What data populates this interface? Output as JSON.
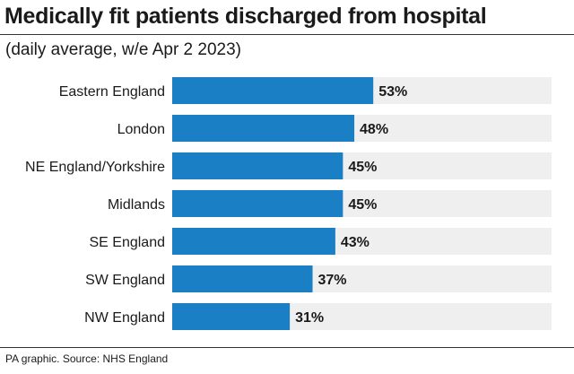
{
  "chart_data": {
    "type": "bar",
    "orientation": "horizontal",
    "title": "Medically fit patients discharged from hospital",
    "subtitle": "(daily average, w/e Apr 2 2023)",
    "categories": [
      "Eastern England",
      "London",
      "NE England/Yorkshire",
      "Midlands",
      "SE England",
      "SW England",
      "NW England"
    ],
    "values": [
      53,
      48,
      45,
      45,
      43,
      37,
      31
    ],
    "value_labels": [
      "53%",
      "48%",
      "45%",
      "45%",
      "43%",
      "37%",
      "31%"
    ],
    "xlim": [
      0,
      100
    ],
    "unit": "%",
    "bar_color": "#1a7fc4",
    "track_color": "#efefef",
    "grid": false
  },
  "source": "PA graphic. Source: NHS England"
}
